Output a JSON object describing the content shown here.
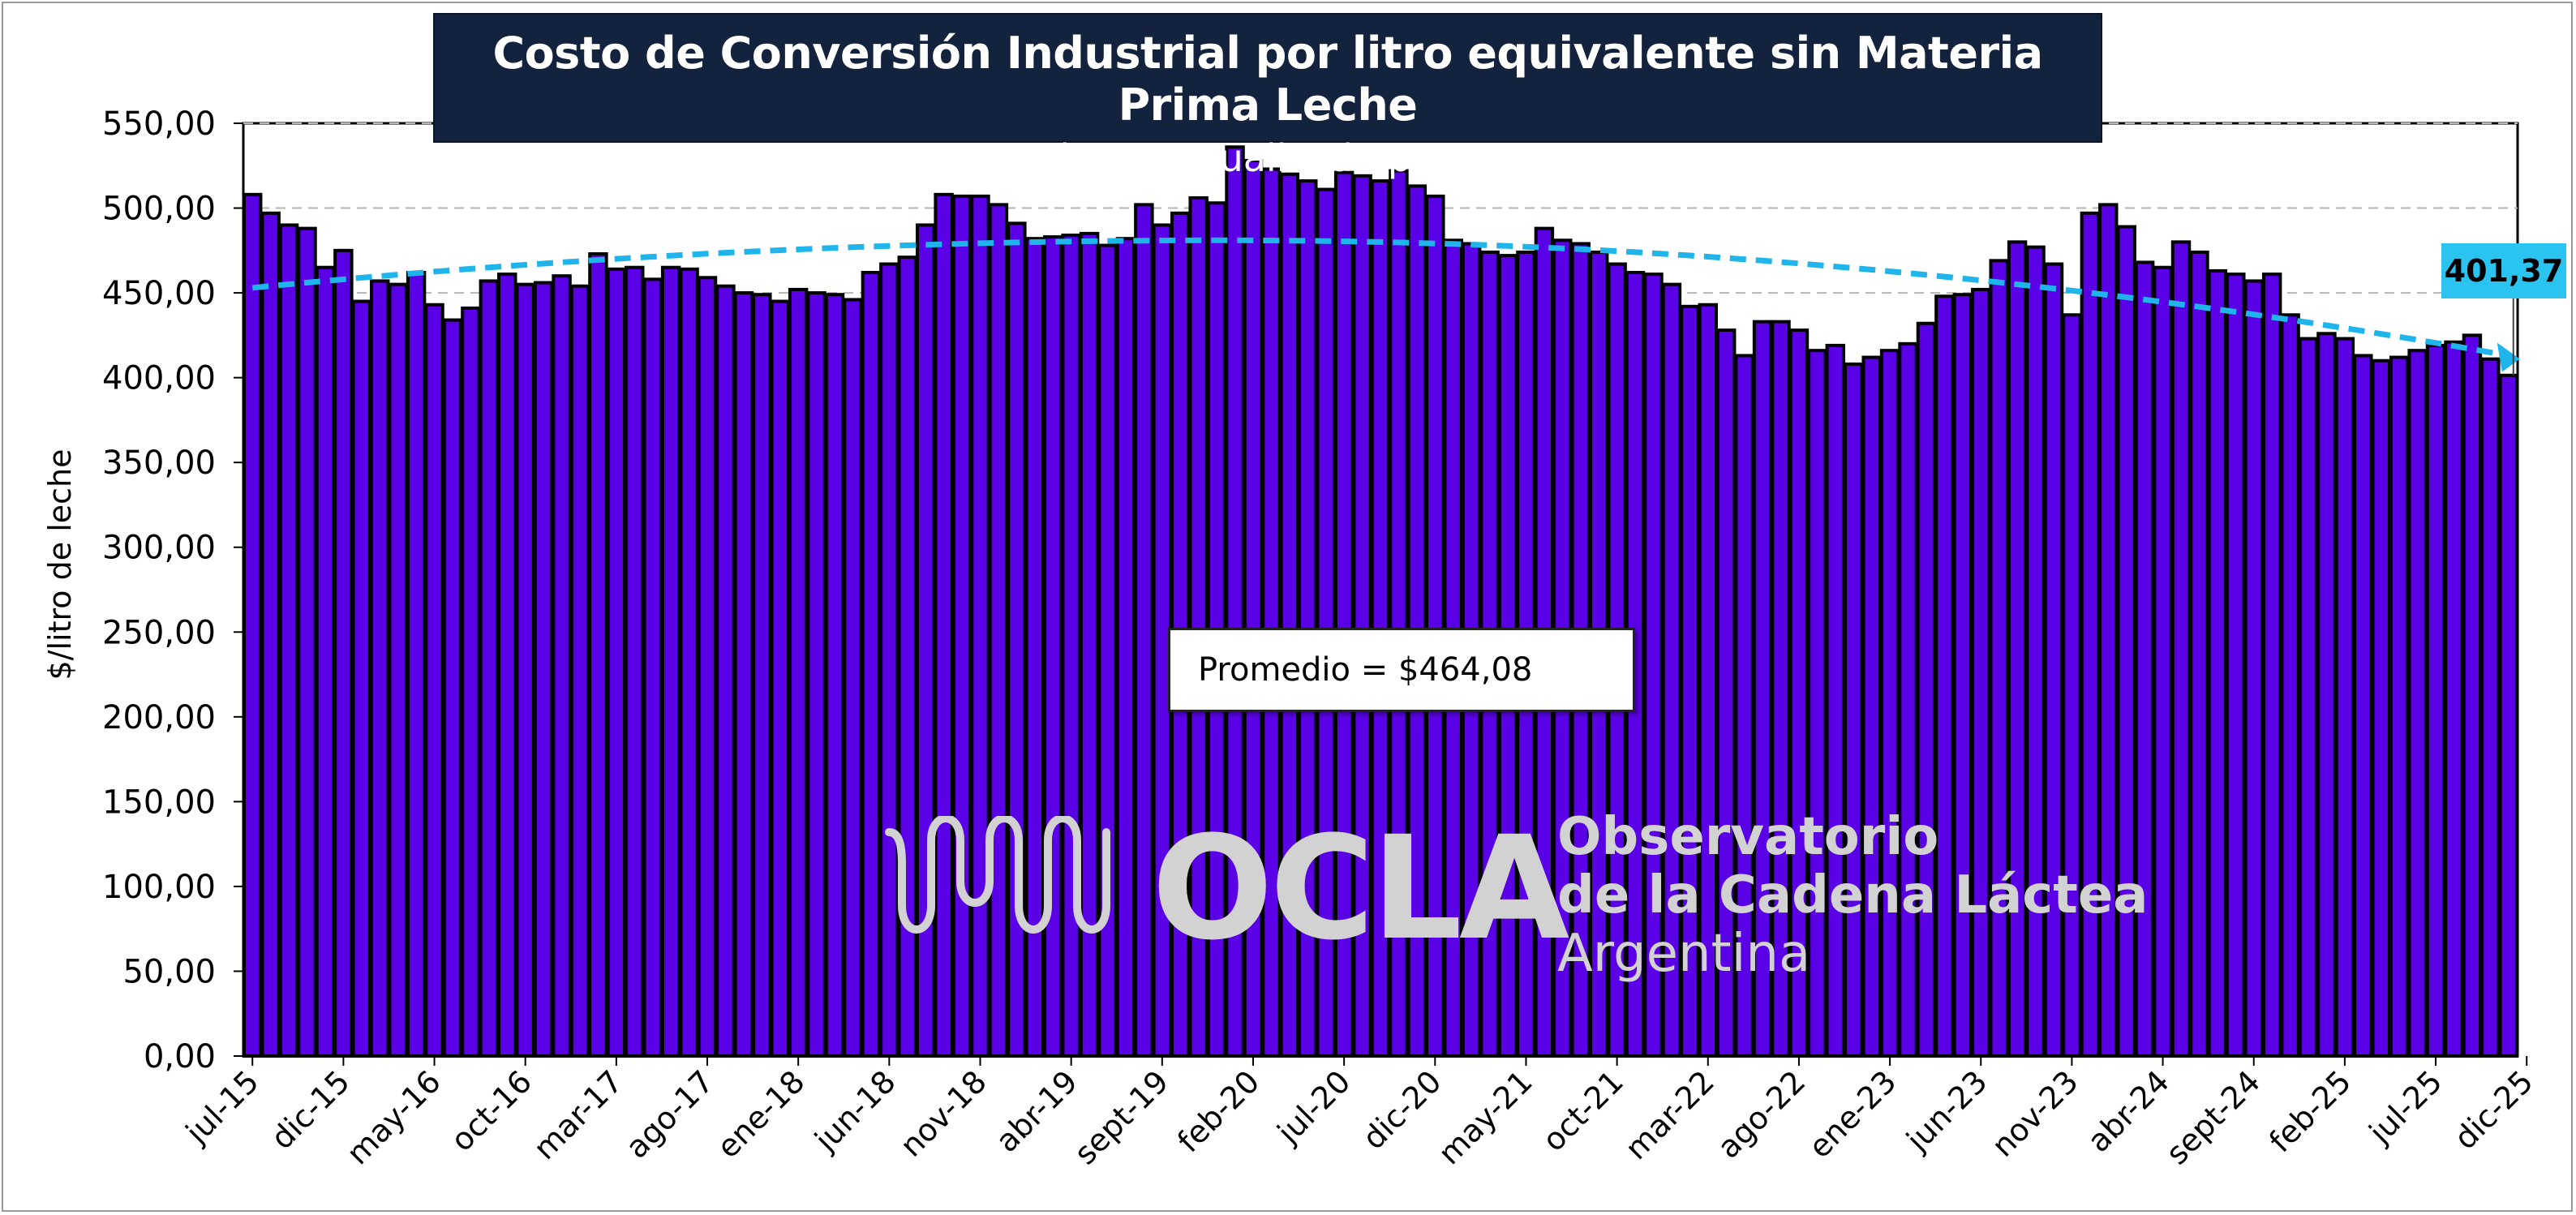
{
  "header": {
    "title": "Costo de Conversión Industrial por litro equivalente sin Materia Prima Leche",
    "subtitle": "- valores actualizado por IPC -"
  },
  "annotations": {
    "average_label": "Promedio = $464,08",
    "last_value_label": "401,37"
  },
  "logo": {
    "mark": "OCLA",
    "line1": "Observatorio",
    "line2": "de la Cadena Láctea",
    "line3": "Argentina",
    "icon": "wave-pipes-icon"
  },
  "colors": {
    "bar_fill": "#5a00e6",
    "bar_stroke": "#000000",
    "trend": "#1fb4ea",
    "title_bg": "#13233d",
    "label_bg": "#2bc4f0"
  },
  "chart_data": {
    "type": "bar",
    "ylabel": "$/litro de leche",
    "xlabel": "",
    "ylim": [
      0,
      550
    ],
    "yticks": [
      "0,00",
      "50,00",
      "100,00",
      "150,00",
      "200,00",
      "250,00",
      "300,00",
      "350,00",
      "400,00",
      "450,00",
      "500,00",
      "550,00"
    ],
    "ytick_values": [
      0,
      50,
      100,
      150,
      200,
      250,
      300,
      350,
      400,
      450,
      500,
      550
    ],
    "grid": "horizontal dashed",
    "x_start": "jul-15",
    "x_end": "dic-25",
    "xtick_labels": [
      "jul-15",
      "dic-15",
      "may-16",
      "oct-16",
      "mar-17",
      "ago-17",
      "ene-18",
      "jun-18",
      "nov-18",
      "abr-19",
      "sept-19",
      "feb-20",
      "jul-20",
      "dic-20",
      "may-21",
      "oct-21",
      "mar-22",
      "ago-22",
      "ene-23",
      "jun-23",
      "nov-23",
      "abr-24",
      "sept-24",
      "feb-25",
      "jul-25",
      "dic-25"
    ],
    "xtick_every": 5,
    "values": [
      508,
      497,
      490,
      488,
      465,
      475,
      445,
      457,
      455,
      462,
      443,
      434,
      441,
      457,
      461,
      455,
      456,
      460,
      454,
      473,
      464,
      465,
      458,
      465,
      464,
      459,
      454,
      450,
      449,
      445,
      452,
      450,
      449,
      446,
      462,
      467,
      471,
      490,
      508,
      507,
      507,
      502,
      491,
      482,
      483,
      484,
      485,
      478,
      482,
      502,
      490,
      497,
      506,
      503,
      536,
      528,
      523,
      520,
      516,
      511,
      521,
      519,
      516,
      522,
      513,
      507,
      481,
      479,
      474,
      472,
      474,
      488,
      481,
      479,
      474,
      467,
      462,
      461,
      455,
      442,
      443,
      428,
      413,
      433,
      433,
      428,
      416,
      419,
      408,
      412,
      416,
      420,
      432,
      448,
      449,
      452,
      469,
      480,
      477,
      467,
      437,
      497,
      502,
      489,
      468,
      465,
      480,
      474,
      463,
      461,
      457,
      461,
      437,
      423,
      426,
      423,
      413,
      410,
      412,
      416,
      419,
      421,
      425,
      411,
      401.37
    ],
    "series": [
      {
        "name": "",
        "type": "bar"
      }
    ],
    "trend": {
      "type": "polynomial",
      "style": "dashed",
      "start": 453,
      "peak": 481,
      "end": 413
    },
    "average": 464.08,
    "last_value": 401.37
  }
}
